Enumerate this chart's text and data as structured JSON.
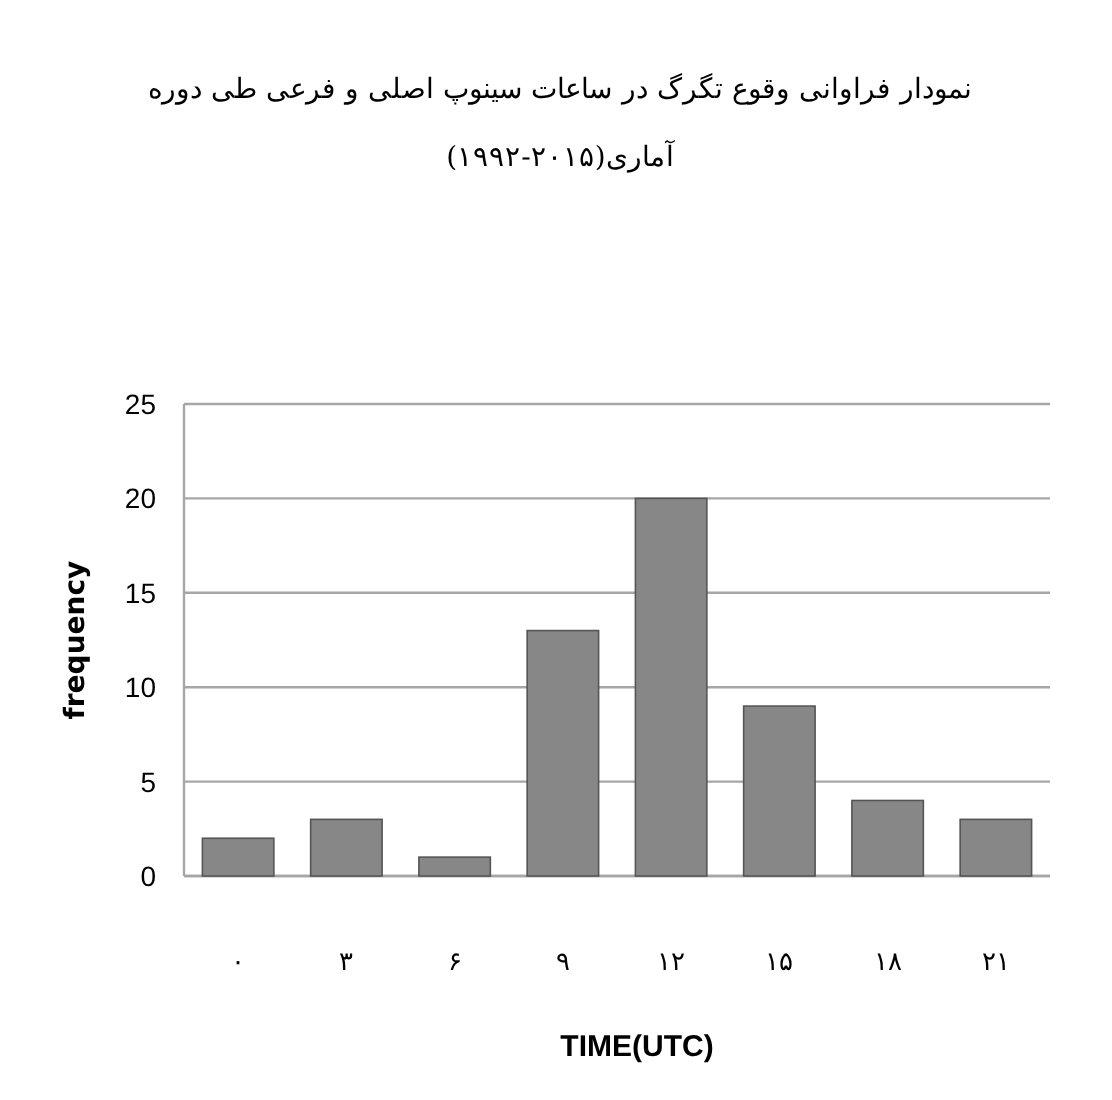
{
  "chart_data": {
    "type": "bar",
    "title": "نمودار فراوانی وقوع تگرگ در ساعات سینوپ اصلی و فرعی طی دوره آماری(۲۰۱۵-۱۹۹۲)",
    "xlabel": "TIME(UTC)",
    "ylabel": "frequency",
    "categories": [
      "۰",
      "۳",
      "۶",
      "۹",
      "۱۲",
      "۱۵",
      "۱۸",
      "۲۱"
    ],
    "values": [
      2,
      3,
      1,
      13,
      20,
      9,
      4,
      3
    ],
    "color": "#878787",
    "ylim": [
      0,
      25
    ],
    "yticks": [
      0,
      5,
      10,
      15,
      20,
      25
    ],
    "grid": "y"
  }
}
